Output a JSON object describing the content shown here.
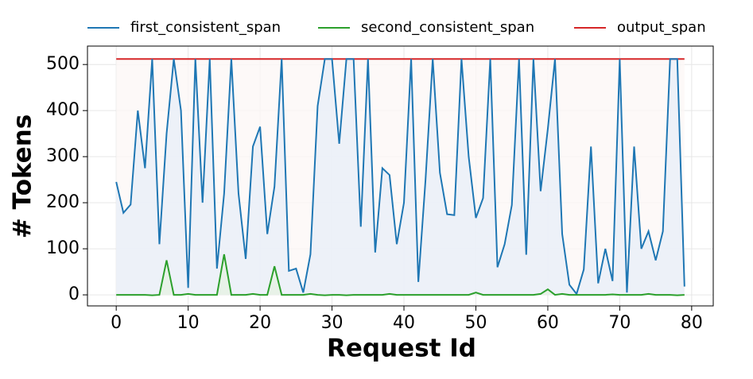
{
  "chart_data": {
    "type": "line",
    "xlabel": "Request Id",
    "ylabel": "# Tokens",
    "x": [
      0,
      1,
      2,
      3,
      4,
      5,
      6,
      7,
      8,
      9,
      10,
      11,
      12,
      13,
      14,
      15,
      16,
      17,
      18,
      19,
      20,
      21,
      22,
      23,
      24,
      25,
      26,
      27,
      28,
      29,
      30,
      31,
      32,
      33,
      34,
      35,
      36,
      37,
      38,
      39,
      40,
      41,
      42,
      43,
      44,
      45,
      46,
      47,
      48,
      49,
      50,
      51,
      52,
      53,
      54,
      55,
      56,
      57,
      58,
      59,
      60,
      61,
      62,
      63,
      64,
      65,
      66,
      67,
      68,
      69,
      70,
      71,
      72,
      73,
      74,
      75,
      76,
      77,
      78,
      79
    ],
    "series": [
      {
        "name": "first_consistent_span",
        "color": "#1f77b4",
        "fill": "#e8eff7",
        "values": [
          245,
          178,
          196,
          400,
          275,
          512,
          110,
          350,
          512,
          400,
          15,
          512,
          200,
          512,
          57,
          220,
          512,
          220,
          78,
          322,
          365,
          132,
          235,
          512,
          52,
          57,
          5,
          88,
          410,
          512,
          512,
          328,
          512,
          512,
          148,
          512,
          92,
          275,
          260,
          110,
          200,
          512,
          28,
          250,
          512,
          265,
          175,
          173,
          512,
          300,
          167,
          210,
          512,
          60,
          110,
          195,
          512,
          87,
          512,
          225,
          360,
          512,
          132,
          22,
          2,
          55,
          322,
          25,
          100,
          30,
          512,
          5,
          322,
          100,
          138,
          75,
          138,
          512,
          512,
          18
        ]
      },
      {
        "name": "second_consistent_span",
        "color": "#2ca02c",
        "fill": "#e6f2e4",
        "values": [
          0,
          0,
          0,
          0,
          0,
          -1,
          0,
          75,
          0,
          0,
          2,
          0,
          0,
          0,
          0,
          88,
          0,
          0,
          0,
          2,
          0,
          0,
          62,
          0,
          0,
          0,
          0,
          2,
          0,
          -1,
          0,
          0,
          -1,
          0,
          0,
          0,
          0,
          0,
          2,
          0,
          0,
          0,
          0,
          0,
          0,
          0,
          0,
          0,
          0,
          0,
          5,
          0,
          0,
          0,
          0,
          0,
          0,
          0,
          0,
          2,
          12,
          0,
          2,
          0,
          0,
          0,
          0,
          0,
          0,
          1,
          0,
          0,
          0,
          0,
          2,
          0,
          0,
          0,
          -1,
          0
        ]
      },
      {
        "name": "output_span",
        "color": "#d62728",
        "fill": "#fdf8f6",
        "values": [
          512,
          512,
          512,
          512,
          512,
          512,
          512,
          512,
          512,
          512,
          512,
          512,
          512,
          512,
          512,
          512,
          512,
          512,
          512,
          512,
          512,
          512,
          512,
          512,
          512,
          512,
          512,
          512,
          512,
          512,
          512,
          512,
          512,
          512,
          512,
          512,
          512,
          512,
          512,
          512,
          512,
          512,
          512,
          512,
          512,
          512,
          512,
          512,
          512,
          512,
          512,
          512,
          512,
          512,
          512,
          512,
          512,
          512,
          512,
          512,
          512,
          512,
          512,
          512,
          512,
          512,
          512,
          512,
          512,
          512,
          512,
          512,
          512,
          512,
          512,
          512,
          512,
          512,
          512,
          512
        ]
      }
    ],
    "xlim": [
      -4,
      83
    ],
    "ylim": [
      -24,
      540
    ],
    "xticks": [
      0,
      10,
      20,
      30,
      40,
      50,
      60,
      70,
      80
    ],
    "yticks": [
      0,
      100,
      200,
      300,
      400,
      500
    ],
    "grid": true,
    "legend": "top"
  }
}
